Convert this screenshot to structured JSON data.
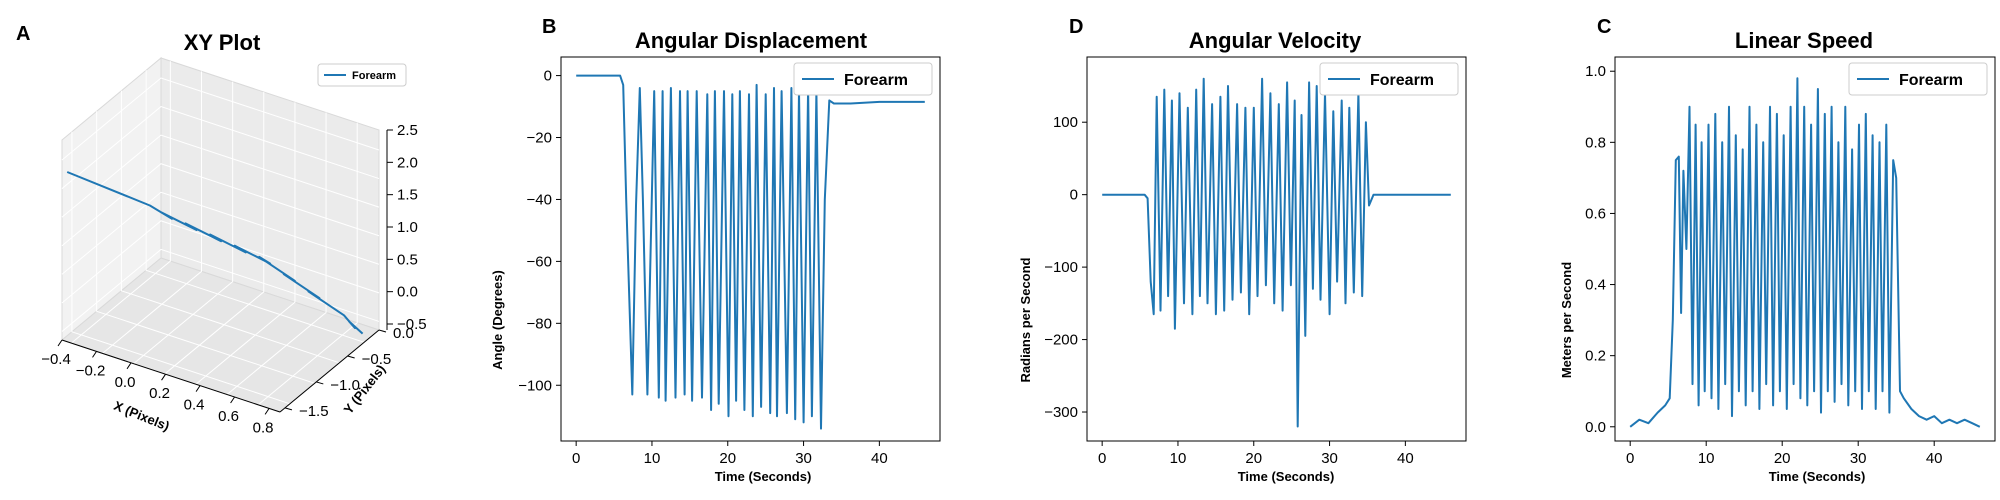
{
  "figure": {
    "line_color": "#1f77b4"
  },
  "panels": {
    "a": {
      "letter": "A",
      "title": "XY Plot",
      "legend": "Forearm",
      "xlabel": "X (Pixels)",
      "ylabel": "Y (Pixels)",
      "x_ticks": [
        "−0.4",
        "−0.2",
        "0.0",
        "0.2",
        "0.4",
        "0.6",
        "0.8"
      ],
      "y_ticks": [
        "0.0",
        "−0.5",
        "−1.0",
        "−1.5"
      ],
      "z_ticks": [
        "2.5",
        "2.0",
        "1.5",
        "1.0",
        "0.5",
        "0.0",
        "−0.5"
      ]
    },
    "b": {
      "letter": "B",
      "title": "Angular Displacement",
      "legend": "Forearm",
      "xlabel": "Time (Seconds)",
      "ylabel": "Angle (Degrees)",
      "x_ticks": [
        "0",
        "10",
        "20",
        "30",
        "40"
      ],
      "y_ticks": [
        "0",
        "−20",
        "−40",
        "−60",
        "−80",
        "−100"
      ]
    },
    "d": {
      "letter": "D",
      "title": "Angular Velocity",
      "legend": "Forearm",
      "xlabel": "Time (Seconds)",
      "ylabel": "Radians per Second",
      "x_ticks": [
        "0",
        "10",
        "20",
        "30",
        "40"
      ],
      "y_ticks": [
        "100",
        "0",
        "−100",
        "−200",
        "−300"
      ]
    },
    "c": {
      "letter": "C",
      "title": "Linear Speed",
      "legend": "Forearm",
      "xlabel": "Time (Seconds)",
      "ylabel": "Meters per Second",
      "x_ticks": [
        "0",
        "10",
        "20",
        "30",
        "40"
      ],
      "y_ticks": [
        "0.0",
        "0.2",
        "0.4",
        "0.6",
        "0.8",
        "1.0"
      ]
    }
  },
  "chart_data": [
    {
      "type": "line",
      "title": "XY Plot",
      "projection": "3d",
      "xlabel": "X (Pixels)",
      "ylabel": "Y (Pixels)",
      "xlim": [
        -0.4,
        0.9
      ],
      "ylim": [
        -1.6,
        0.3
      ],
      "zlim": [
        -0.7,
        2.6
      ],
      "grid": true,
      "legend": "top-right",
      "series": [
        {
          "name": "Forearm",
          "x": [
            -0.4,
            0.0,
            0.1,
            0.05,
            0.2,
            0.15,
            0.3,
            0.25,
            0.4,
            0.35,
            0.5,
            0.45,
            0.6,
            0.55,
            0.7,
            0.65,
            0.8,
            0.85,
            0.82,
            0.88
          ],
          "y": [
            -1.5,
            -1.2,
            -1.1,
            -1.15,
            -0.95,
            -1.0,
            -0.8,
            -0.85,
            -0.65,
            -0.7,
            -0.5,
            -0.55,
            -0.35,
            -0.4,
            -0.2,
            -0.25,
            -0.05,
            0.0,
            -0.02,
            0.05
          ],
          "z": [
            2.0,
            1.6,
            1.4,
            1.5,
            1.2,
            1.3,
            1.0,
            1.1,
            0.8,
            0.9,
            0.6,
            0.7,
            0.3,
            0.4,
            0.0,
            0.1,
            -0.3,
            -0.5,
            -0.4,
            -0.6
          ]
        }
      ]
    },
    {
      "type": "line",
      "title": "Angular Displacement",
      "xlabel": "Time (Seconds)",
      "ylabel": "Angle (Degrees)",
      "xlim": [
        -2,
        48
      ],
      "ylim": [
        -118,
        6
      ],
      "grid": false,
      "legend": "top-right",
      "series": [
        {
          "name": "Forearm",
          "x": [
            0,
            5.8,
            6.2,
            6.6,
            7.4,
            7.9,
            8.4,
            8.8,
            9.4,
            10.3,
            10.9,
            11.4,
            11.8,
            12.5,
            13.1,
            13.7,
            14.3,
            14.7,
            15.3,
            15.9,
            16.6,
            17.3,
            17.8,
            18.3,
            18.8,
            19.5,
            20.1,
            20.6,
            21.1,
            21.6,
            22.2,
            22.8,
            23.3,
            23.8,
            24.4,
            25.0,
            25.6,
            26.1,
            26.5,
            27.1,
            27.8,
            28.4,
            28.9,
            29.4,
            30.0,
            30.6,
            31.1,
            31.7,
            32.3,
            32.8,
            33.4,
            34.0,
            34.7,
            35.4,
            36.2,
            40,
            46
          ],
          "values": [
            0,
            0,
            -3,
            -40,
            -103,
            -42,
            -4,
            -40,
            -103,
            -5,
            -104,
            -5,
            -105,
            -4,
            -104,
            -5,
            -103,
            -5,
            -105,
            -5,
            -104,
            -6,
            -108,
            -5,
            -106,
            -5,
            -110,
            -6,
            -105,
            -5,
            -108,
            -6,
            -110,
            -3,
            -107,
            -6,
            -109,
            -4,
            -110,
            -5,
            -109,
            -4,
            -111,
            -5,
            -112,
            -4,
            -110,
            -5,
            -114,
            -40,
            -8,
            -9,
            -9,
            -9,
            -9,
            -8.5,
            -8.5
          ]
        }
      ]
    },
    {
      "type": "line",
      "title": "Angular Velocity",
      "xlabel": "Time (Seconds)",
      "ylabel": "Radians per Second",
      "xlim": [
        -2,
        48
      ],
      "ylim": [
        -340,
        190
      ],
      "grid": false,
      "legend": "top-right",
      "series": [
        {
          "name": "Forearm",
          "x": [
            0,
            5.6,
            6.0,
            6.4,
            6.8,
            7.2,
            7.7,
            8.2,
            8.7,
            9.2,
            9.6,
            10.2,
            10.8,
            11.3,
            11.9,
            12.4,
            12.9,
            13.4,
            13.9,
            14.5,
            15.0,
            15.6,
            16.1,
            16.6,
            17.2,
            17.8,
            18.3,
            18.9,
            19.4,
            20.0,
            20.5,
            21.1,
            21.6,
            22.2,
            22.7,
            23.3,
            23.8,
            24.4,
            24.9,
            25.4,
            25.8,
            26.3,
            26.8,
            27.3,
            27.8,
            28.3,
            28.8,
            29.4,
            30.0,
            30.5,
            31.0,
            31.6,
            32.1,
            32.6,
            33.2,
            33.8,
            34.3,
            34.8,
            35.2,
            35.8,
            40,
            46
          ],
          "values": [
            0,
            0,
            -5,
            -120,
            -165,
            135,
            -160,
            145,
            -140,
            130,
            -185,
            140,
            -150,
            120,
            -165,
            145,
            -140,
            160,
            -150,
            125,
            -165,
            135,
            -160,
            150,
            -145,
            125,
            -135,
            120,
            -165,
            120,
            -140,
            160,
            -125,
            140,
            -150,
            125,
            -160,
            155,
            -125,
            130,
            -320,
            110,
            -195,
            155,
            -130,
            150,
            -145,
            140,
            -165,
            115,
            -120,
            130,
            -150,
            120,
            -135,
            140,
            -140,
            100,
            -15,
            0,
            0,
            0
          ]
        }
      ]
    },
    {
      "type": "line",
      "title": "Linear Speed",
      "xlabel": "Time (Seconds)",
      "ylabel": "Meters per Second",
      "xlim": [
        -2,
        48
      ],
      "ylim": [
        -0.04,
        1.04
      ],
      "grid": false,
      "legend": "top-right",
      "series": [
        {
          "name": "Forearm",
          "x": [
            0,
            1.2,
            2.4,
            3.6,
            4.6,
            5.2,
            5.6,
            6.0,
            6.4,
            6.7,
            7.0,
            7.4,
            7.8,
            8.2,
            8.6,
            9.0,
            9.4,
            9.8,
            10.3,
            10.7,
            11.2,
            11.6,
            12.1,
            12.5,
            13.0,
            13.4,
            13.9,
            14.3,
            14.8,
            15.2,
            15.7,
            16.1,
            16.6,
            17.0,
            17.5,
            17.9,
            18.4,
            18.8,
            19.3,
            19.7,
            20.2,
            20.6,
            21.1,
            21.5,
            22.0,
            22.4,
            22.9,
            23.3,
            23.8,
            24.2,
            24.7,
            25.1,
            25.6,
            26.0,
            26.5,
            26.9,
            27.4,
            27.8,
            28.3,
            28.7,
            29.2,
            29.6,
            30.1,
            30.5,
            31.0,
            31.4,
            31.9,
            32.3,
            32.8,
            33.2,
            33.7,
            34.1,
            34.6,
            35.0,
            35.5,
            36.0,
            37,
            38,
            39,
            40,
            41,
            42,
            43,
            44,
            45,
            46
          ],
          "values": [
            0.0,
            0.02,
            0.01,
            0.04,
            0.06,
            0.08,
            0.3,
            0.75,
            0.76,
            0.32,
            0.72,
            0.5,
            0.9,
            0.12,
            0.85,
            0.06,
            0.8,
            0.1,
            0.85,
            0.08,
            0.88,
            0.05,
            0.8,
            0.12,
            0.9,
            0.03,
            0.82,
            0.1,
            0.78,
            0.06,
            0.9,
            0.1,
            0.85,
            0.05,
            0.8,
            0.12,
            0.9,
            0.06,
            0.88,
            0.1,
            0.82,
            0.05,
            0.9,
            0.12,
            0.98,
            0.08,
            0.9,
            0.06,
            0.85,
            0.1,
            0.95,
            0.04,
            0.88,
            0.1,
            0.9,
            0.07,
            0.8,
            0.12,
            0.9,
            0.06,
            0.78,
            0.1,
            0.85,
            0.05,
            0.88,
            0.1,
            0.82,
            0.05,
            0.8,
            0.1,
            0.85,
            0.04,
            0.75,
            0.7,
            0.1,
            0.08,
            0.05,
            0.03,
            0.02,
            0.03,
            0.01,
            0.02,
            0.01,
            0.02,
            0.01,
            0.0
          ]
        }
      ]
    }
  ]
}
